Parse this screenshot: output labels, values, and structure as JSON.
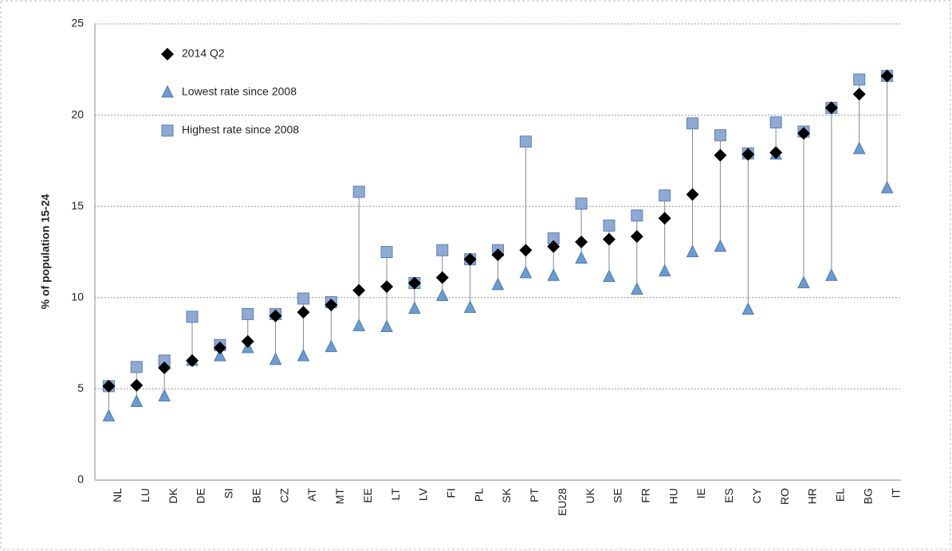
{
  "chart_data": {
    "type": "range-dot",
    "y_label": "% of population 15-24",
    "categories": [
      "NL",
      "LU",
      "DK",
      "DE",
      "SI",
      "BE",
      "CZ",
      "AT",
      "MT",
      "EE",
      "LT",
      "LV",
      "FI",
      "PL",
      "SK",
      "PT",
      "EU28",
      "UK",
      "SE",
      "FR",
      "HU",
      "IE",
      "ES",
      "CY",
      "RO",
      "HR",
      "EL",
      "BG",
      "IT"
    ],
    "series": [
      {
        "name": "2014 Q2",
        "color": "#000000",
        "marker": "diamond",
        "values": [
          5.15,
          5.2,
          6.15,
          6.55,
          7.25,
          7.6,
          9.0,
          9.2,
          9.6,
          10.4,
          10.6,
          10.8,
          11.1,
          12.1,
          12.35,
          12.6,
          12.8,
          13.05,
          13.2,
          13.35,
          14.35,
          15.65,
          17.8,
          17.85,
          17.95,
          19.0,
          20.4,
          21.15,
          22.15
        ]
      },
      {
        "name": "Lowest rate since 2008",
        "color": "#6a9bd1",
        "marker": "triangle",
        "values": [
          3.5,
          4.3,
          4.6,
          6.55,
          6.8,
          7.25,
          6.6,
          6.8,
          7.3,
          8.45,
          8.4,
          9.4,
          10.1,
          9.45,
          10.7,
          11.35,
          11.2,
          12.15,
          11.15,
          10.45,
          11.45,
          12.5,
          12.8,
          9.35,
          17.85,
          10.8,
          11.2,
          18.15,
          16.0
        ]
      },
      {
        "name": "Highest rate since 2008",
        "color": "#8fa9d6",
        "marker": "square",
        "values": [
          5.15,
          6.2,
          6.55,
          8.95,
          7.4,
          9.1,
          9.1,
          9.95,
          9.75,
          15.8,
          12.5,
          10.8,
          12.6,
          12.1,
          12.6,
          18.55,
          13.25,
          15.15,
          13.95,
          14.5,
          15.6,
          19.55,
          18.9,
          17.9,
          19.6,
          19.1,
          20.4,
          21.95,
          22.15
        ]
      }
    ],
    "ylim": [
      0,
      25
    ],
    "yticks": [
      0,
      5,
      10,
      15,
      20,
      25
    ],
    "grid": true,
    "legend": "top-left"
  }
}
